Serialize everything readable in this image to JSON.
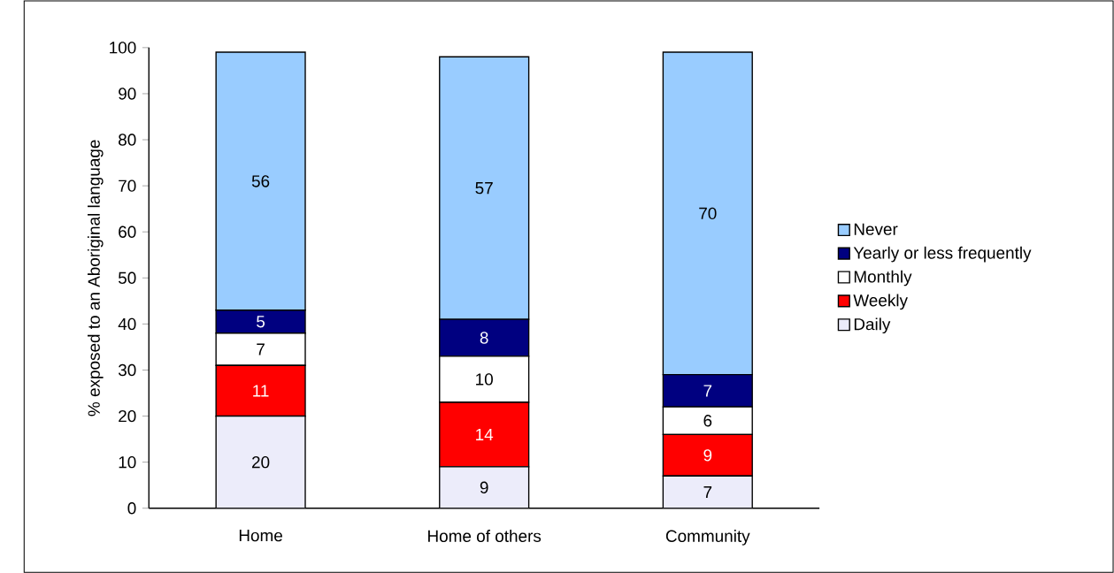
{
  "chart_data": {
    "type": "bar",
    "stacked": true,
    "ylabel": "% exposed to an Aboriginal language",
    "categories": [
      "Home",
      "Home of others",
      "Community"
    ],
    "series": [
      {
        "name": "Daily",
        "color": "#ececfa",
        "values": [
          20,
          9,
          7
        ]
      },
      {
        "name": "Weekly",
        "color": "#ff0000",
        "values": [
          11,
          14,
          9
        ]
      },
      {
        "name": "Monthly",
        "color": "#ffffff",
        "values": [
          7,
          10,
          6
        ]
      },
      {
        "name": "Yearly or less frequently",
        "color": "#000080",
        "values": [
          5,
          8,
          7
        ]
      },
      {
        "name": "Never",
        "color": "#99ccff",
        "values": [
          56,
          57,
          70
        ]
      }
    ],
    "ylim": [
      0,
      100
    ],
    "yticks": [
      0,
      10,
      20,
      30,
      40,
      50,
      60,
      70,
      80,
      90,
      100
    ],
    "data_labels": true,
    "legend": "right",
    "grid": false
  }
}
